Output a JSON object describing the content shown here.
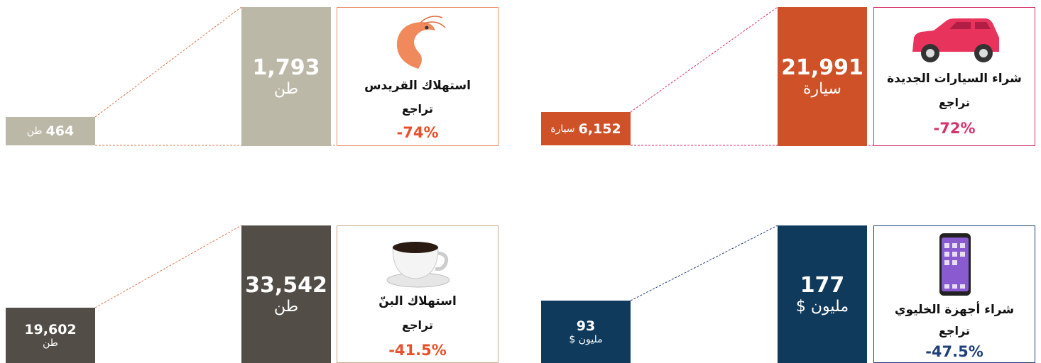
{
  "panels": [
    {
      "title": "شراء السيارات الجديدة",
      "subtitle": "تراجع",
      "change": "-72%",
      "big_value": "21,991",
      "big_unit": "سيارة",
      "small_value": "6,152",
      "small_unit": "سيارة"
    },
    {
      "title": "استهلاك القريدس",
      "subtitle": "تراجع",
      "change": "-74%",
      "big_value": "1,793",
      "big_unit": "طن",
      "small_value": "464",
      "small_unit": "طن"
    },
    {
      "title": "شراء أجهزة الخليوي",
      "subtitle": "تراجع",
      "change": "-47.5%",
      "big_value": "177",
      "big_unit": "مليون $",
      "small_value": "93",
      "small_unit": "مليون $"
    },
    {
      "title": "استهلاك البنّ",
      "subtitle": "تراجع",
      "change": "-41.5%",
      "big_value": "33,542",
      "big_unit": "طن",
      "small_value": "19,602",
      "small_unit": "طن"
    }
  ]
}
